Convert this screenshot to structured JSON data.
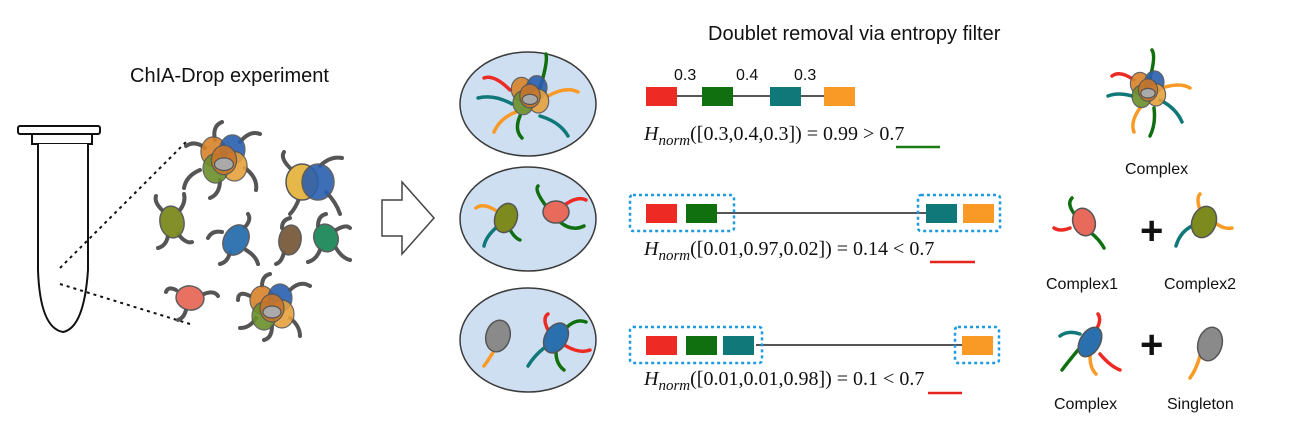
{
  "left": {
    "title": "ChIA-Drop experiment"
  },
  "right": {
    "title": "Doublet removal via entropy filter"
  },
  "rows": [
    {
      "weights": [
        "0.3",
        "0.4",
        "0.3"
      ],
      "formula_prefix": "H",
      "formula_sub": "norm",
      "formula_args": "([0.3,0.4,0.3]) = ",
      "score": "0.99",
      "formula_tail": " > 0.7",
      "score_underline_color": "#1e7a12",
      "results": [
        "Complex"
      ]
    },
    {
      "formula_prefix": "H",
      "formula_sub": "norm",
      "formula_args": "([0.01,0.97,0.02]) = ",
      "score": "0.14",
      "formula_tail": " < 0.7",
      "score_underline_color": "#e8231c",
      "results": [
        "Complex1",
        "Complex2"
      ],
      "operator": "+"
    },
    {
      "formula_prefix": "H",
      "formula_sub": "norm",
      "formula_args": "([0.01,0.01,0.98]) = ",
      "score": "0.1",
      "formula_tail": " < 0.7",
      "score_underline_color": "#e8231c",
      "results": [
        "Complex",
        "Singleton"
      ],
      "operator": "+"
    }
  ],
  "colors": {
    "fragment_red": "#ee2a24",
    "fragment_green": "#10700f",
    "fragment_teal": "#107878",
    "fragment_orange": "#f99a26",
    "droplet_fill": "#cfdff2",
    "dashed_box": "#1e9be0"
  }
}
